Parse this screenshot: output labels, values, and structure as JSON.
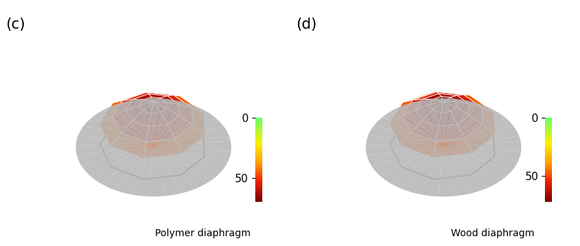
{
  "chart_data": [
    {
      "type": "surface",
      "panel_label": "(c)",
      "title": "Polymer diaphragm",
      "ring_values": [
        68,
        62,
        55,
        45,
        33
      ],
      "colorbar_range": [
        0,
        70
      ],
      "colorbar_ticks": [
        0,
        50
      ]
    },
    {
      "type": "surface",
      "panel_label": "(d)",
      "title": "Wood diaphragm",
      "ring_values": [
        70,
        65,
        57,
        47,
        35
      ],
      "colorbar_range": [
        0,
        72
      ],
      "colorbar_ticks": [
        0,
        50
      ]
    }
  ]
}
